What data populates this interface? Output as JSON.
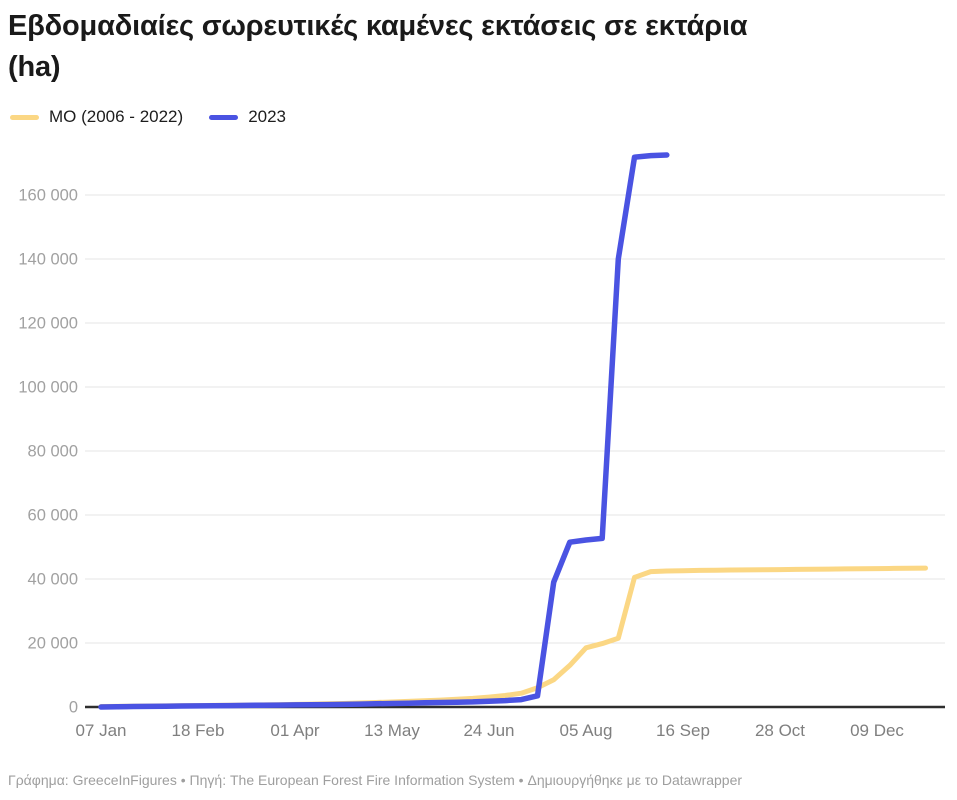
{
  "header": {
    "title_line1": "Εβδομαδιαίες σωρευτικές καμένες εκτάσεις σε εκτάρια",
    "title_line2": "(ha)"
  },
  "legend": {
    "items": [
      {
        "label": "ΜΟ (2006 - 2022)",
        "color": "#fbd784"
      },
      {
        "label": "2023",
        "color": "#4a53e2"
      }
    ]
  },
  "chart_data": {
    "type": "line",
    "title": "Εβδομαδιαίες σωρευτικές καμένες εκτάσεις σε εκτάρια (ha)",
    "xlabel": "",
    "ylabel": "",
    "x_unit": "week_of_year",
    "ylim": [
      0,
      175000
    ],
    "grid": "horizontal",
    "legend_position": "top-left",
    "y_ticks": [
      {
        "value": 0,
        "label": "0"
      },
      {
        "value": 20000,
        "label": "20 000"
      },
      {
        "value": 40000,
        "label": "40 000"
      },
      {
        "value": 60000,
        "label": "60 000"
      },
      {
        "value": 80000,
        "label": "80 000"
      },
      {
        "value": 100000,
        "label": "100 000"
      },
      {
        "value": 120000,
        "label": "120 000"
      },
      {
        "value": 140000,
        "label": "140 000"
      },
      {
        "value": 160000,
        "label": "160 000"
      }
    ],
    "x_ticks": [
      {
        "week": 1,
        "label": "07 Jan"
      },
      {
        "week": 7,
        "label": "18 Feb"
      },
      {
        "week": 13,
        "label": "01 Apr"
      },
      {
        "week": 19,
        "label": "13 May"
      },
      {
        "week": 25,
        "label": "24 Jun"
      },
      {
        "week": 31,
        "label": "05 Aug"
      },
      {
        "week": 37,
        "label": "16 Sep"
      },
      {
        "week": 43,
        "label": "28 Oct"
      },
      {
        "week": 49,
        "label": "09 Dec"
      }
    ],
    "series": [
      {
        "name": "ΜΟ (2006 - 2022)",
        "color": "#fbd784",
        "stroke_width": 5,
        "points": [
          [
            1,
            150
          ],
          [
            2,
            200
          ],
          [
            3,
            250
          ],
          [
            4,
            300
          ],
          [
            5,
            350
          ],
          [
            6,
            400
          ],
          [
            7,
            450
          ],
          [
            8,
            500
          ],
          [
            9,
            550
          ],
          [
            10,
            600
          ],
          [
            11,
            650
          ],
          [
            12,
            700
          ],
          [
            13,
            800
          ],
          [
            14,
            900
          ],
          [
            15,
            1000
          ],
          [
            16,
            1100
          ],
          [
            17,
            1250
          ],
          [
            18,
            1400
          ],
          [
            19,
            1550
          ],
          [
            20,
            1750
          ],
          [
            21,
            1950
          ],
          [
            22,
            2150
          ],
          [
            23,
            2400
          ],
          [
            24,
            2700
          ],
          [
            25,
            3100
          ],
          [
            26,
            3600
          ],
          [
            27,
            4300
          ],
          [
            28,
            6000
          ],
          [
            29,
            8500
          ],
          [
            30,
            13000
          ],
          [
            31,
            18500
          ],
          [
            32,
            19800
          ],
          [
            33,
            21500
          ],
          [
            34,
            40500
          ],
          [
            35,
            42300
          ],
          [
            36,
            42500
          ],
          [
            37,
            42600
          ],
          [
            38,
            42700
          ],
          [
            39,
            42750
          ],
          [
            40,
            42800
          ],
          [
            41,
            42850
          ],
          [
            42,
            42900
          ],
          [
            43,
            42950
          ],
          [
            44,
            43000
          ],
          [
            45,
            43050
          ],
          [
            46,
            43100
          ],
          [
            47,
            43150
          ],
          [
            48,
            43200
          ],
          [
            49,
            43250
          ],
          [
            50,
            43300
          ],
          [
            51,
            43350
          ],
          [
            52,
            43400
          ]
        ]
      },
      {
        "name": "2023",
        "color": "#4a53e2",
        "stroke_width": 5.5,
        "points": [
          [
            1,
            0
          ],
          [
            2,
            100
          ],
          [
            3,
            150
          ],
          [
            4,
            200
          ],
          [
            5,
            250
          ],
          [
            6,
            300
          ],
          [
            7,
            350
          ],
          [
            8,
            400
          ],
          [
            9,
            450
          ],
          [
            10,
            500
          ],
          [
            11,
            550
          ],
          [
            12,
            600
          ],
          [
            13,
            650
          ],
          [
            14,
            700
          ],
          [
            15,
            750
          ],
          [
            16,
            800
          ],
          [
            17,
            900
          ],
          [
            18,
            1000
          ],
          [
            19,
            1100
          ],
          [
            20,
            1200
          ],
          [
            21,
            1300
          ],
          [
            22,
            1400
          ],
          [
            23,
            1500
          ],
          [
            24,
            1600
          ],
          [
            25,
            1800
          ],
          [
            26,
            2000
          ],
          [
            27,
            2300
          ],
          [
            28,
            3500
          ],
          [
            29,
            39000
          ],
          [
            30,
            51500
          ],
          [
            31,
            52200
          ],
          [
            32,
            52700
          ],
          [
            33,
            140000
          ],
          [
            34,
            171800
          ],
          [
            35,
            172300
          ],
          [
            36,
            172500
          ]
        ]
      }
    ]
  },
  "footer": {
    "chart_credit": "Γράφημα: GreeceInFigures",
    "source": "Πηγή: The European Forest Fire Information System",
    "created_with": "Δημιουργήθηκε με το Datawrapper",
    "separator": " • "
  }
}
